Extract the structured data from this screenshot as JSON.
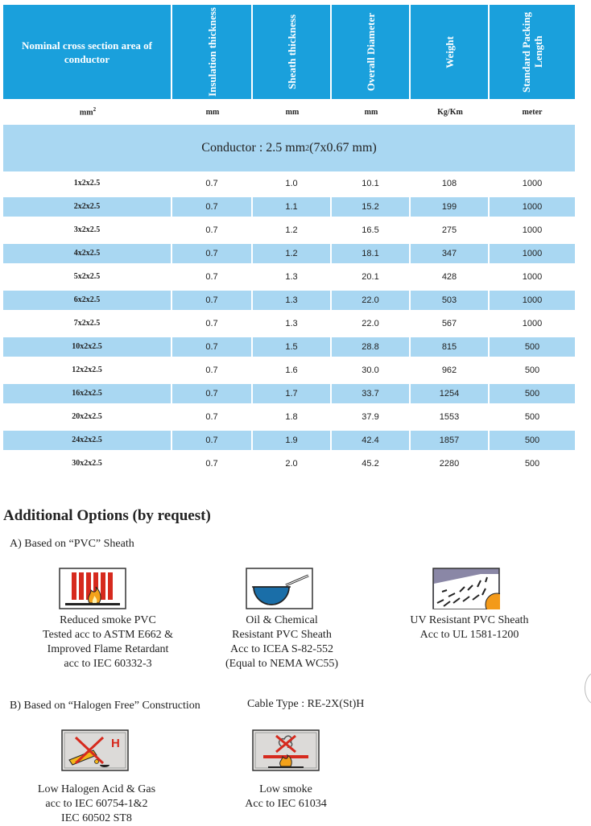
{
  "table": {
    "headers": [
      "Nominal cross section area of conductor",
      "Insulation thickness",
      "Sheath thickness",
      "Overall Diameter",
      "Weight",
      "Standard Packing Length"
    ],
    "units": [
      "mm",
      "mm",
      "mm",
      "mm",
      "Kg/Km",
      "meter"
    ],
    "unit_first_sup": "2",
    "conductor_label": "Conductor : 2.5 mm",
    "conductor_sup": "2",
    "conductor_tail": " (7x0.67 mm)",
    "rows": [
      [
        "1x2x2.5",
        "0.7",
        "1.0",
        "10.1",
        "108",
        "1000"
      ],
      [
        "2x2x2.5",
        "0.7",
        "1.1",
        "15.2",
        "199",
        "1000"
      ],
      [
        "3x2x2.5",
        "0.7",
        "1.2",
        "16.5",
        "275",
        "1000"
      ],
      [
        "4x2x2.5",
        "0.7",
        "1.2",
        "18.1",
        "347",
        "1000"
      ],
      [
        "5x2x2.5",
        "0.7",
        "1.3",
        "20.1",
        "428",
        "1000"
      ],
      [
        "6x2x2.5",
        "0.7",
        "1.3",
        "22.0",
        "503",
        "1000"
      ],
      [
        "7x2x2.5",
        "0.7",
        "1.3",
        "22.0",
        "567",
        "1000"
      ],
      [
        "10x2x2.5",
        "0.7",
        "1.5",
        "28.8",
        "815",
        "500"
      ],
      [
        "12x2x2.5",
        "0.7",
        "1.6",
        "30.0",
        "962",
        "500"
      ],
      [
        "16x2x2.5",
        "0.7",
        "1.7",
        "33.7",
        "1254",
        "500"
      ],
      [
        "20x2x2.5",
        "0.7",
        "1.8",
        "37.9",
        "1553",
        "500"
      ],
      [
        "24x2x2.5",
        "0.7",
        "1.9",
        "42.4",
        "1857",
        "500"
      ],
      [
        "30x2x2.5",
        "0.7",
        "2.0",
        "45.2",
        "2280",
        "500"
      ]
    ]
  },
  "options": {
    "title": "Additional Options (by request)",
    "section_a": "A) Based on “PVC” Sheath",
    "a_items": [
      {
        "icon": "smoke-flame-icon",
        "caption": "Reduced smoke PVC\nTested acc to ASTM E662 &\nImproved Flame Retardant\nacc to IEC 60332-3"
      },
      {
        "icon": "oil-chemical-icon",
        "caption": "Oil & Chemical\nResistant PVC Sheath\nAcc to ICEA S-82-552\n(Equal to NEMA WC55)"
      },
      {
        "icon": "uv-sun-icon",
        "caption": "UV Resistant PVC Sheath\nAcc to UL 1581-1200"
      }
    ],
    "section_b": "B) Based on “Halogen Free” Construction",
    "cable_type": "Cable Type : RE-2X(St)H",
    "b_items": [
      {
        "icon": "halogen-acid-icon",
        "caption": "Low Halogen Acid & Gas\nacc to IEC 60754-1&2\nIEC 60502 ST8"
      },
      {
        "icon": "low-smoke-icon",
        "caption": "Low smoke\nAcc to IEC 61034"
      }
    ],
    "halogen_letter": "H"
  },
  "colors": {
    "header": "#1aa0dc",
    "stripe": "#a9d7f2"
  }
}
